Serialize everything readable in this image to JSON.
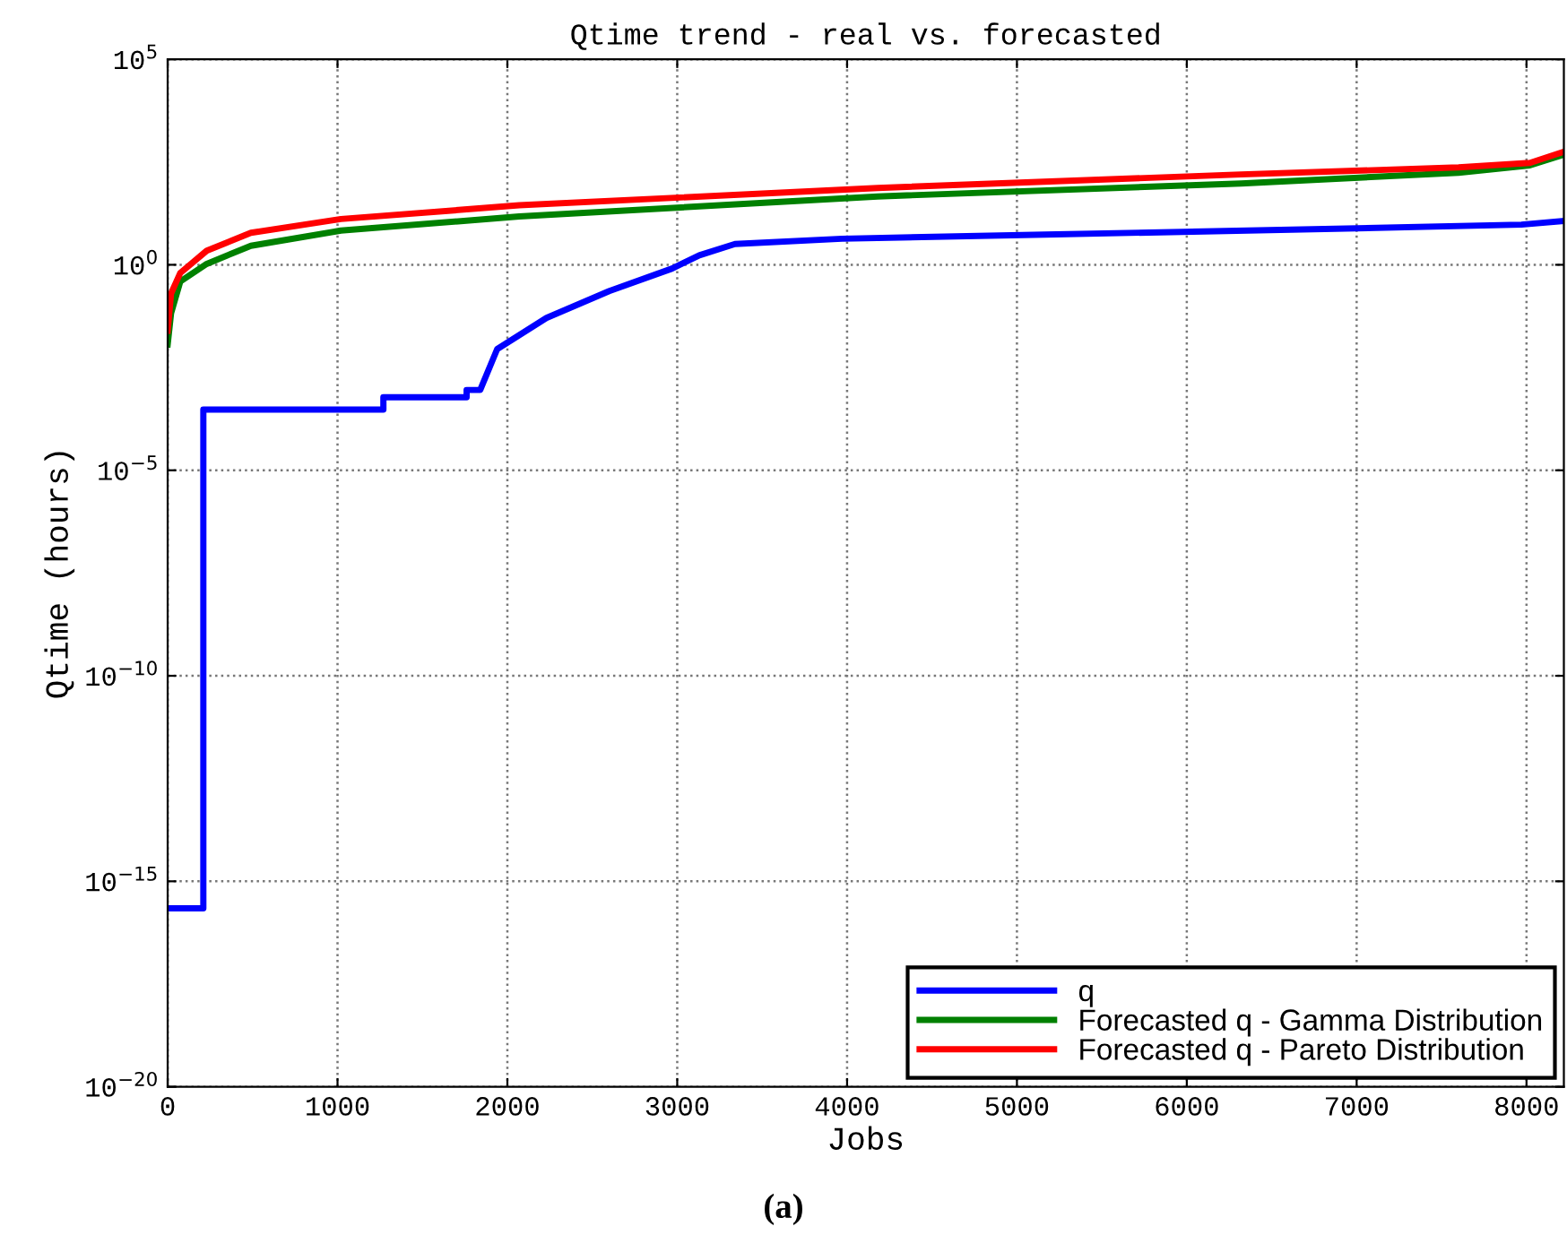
{
  "chart_data": {
    "type": "line",
    "title": "Qtime trend - real vs. forecasted",
    "xlabel": "Jobs",
    "ylabel": "Qtime (hours)",
    "annotations": [
      "(a)"
    ],
    "log": "y",
    "grid": true,
    "legend": "bottom right",
    "line_style": "solid",
    "xlim": [
      0,
      8220
    ],
    "xticks": [
      0,
      1000,
      2000,
      3000,
      4000,
      5000,
      6000,
      7000,
      8000
    ],
    "ylim": [
      1e-20,
      100000.0
    ],
    "yticks": [
      {
        "value": 1e-20,
        "label": "10$^{−20}$"
      },
      {
        "value": 1e-15,
        "label": "10$^{−15}$"
      },
      {
        "value": 1e-10,
        "label": "10$^{−10}$"
      },
      {
        "value": 1e-05,
        "label": "10$^{−5}$"
      },
      {
        "value": 1,
        "label": "10$^{0}$"
      },
      {
        "value": 100000.0,
        "label": "10$^{5}$"
      }
    ],
    "series": [
      {
        "name": "q",
        "color": "#0000ff",
        "x": [
          0,
          210,
          210,
          1270,
          1270,
          1760,
          1760,
          1840,
          1940,
          2230,
          2600,
          2970,
          3130,
          3340,
          3970,
          5230,
          6810,
          7970,
          8220
        ],
        "values": [
          2.2e-16,
          2.2e-16,
          0.0003,
          0.0003,
          0.0006,
          0.0006,
          0.0009,
          0.0009,
          0.0089,
          0.051,
          0.23,
          0.81,
          1.7,
          3.2,
          4.3,
          5.5,
          7.4,
          9.5,
          11.7
        ]
      },
      {
        "name": "Forecasted q - Gamma Distribution",
        "color": "#008000",
        "x": [
          0,
          20,
          74,
          230,
          490,
          1020,
          2070,
          4180,
          6320,
          7600,
          8020,
          8220
        ],
        "values": [
          0.0115,
          0.066,
          0.39,
          1.05,
          2.9,
          6.8,
          15,
          46,
          95,
          174,
          263,
          479
        ]
      },
      {
        "name": "Forecasted q - Pareto Distribution",
        "color": "#ff0000",
        "x": [
          0,
          20,
          74,
          230,
          490,
          1020,
          2070,
          4180,
          6320,
          7600,
          8020,
          8220
        ],
        "values": [
          0.025,
          0.2,
          0.63,
          2.2,
          6,
          13,
          28,
          74,
          158,
          234,
          302,
          562
        ]
      }
    ]
  }
}
